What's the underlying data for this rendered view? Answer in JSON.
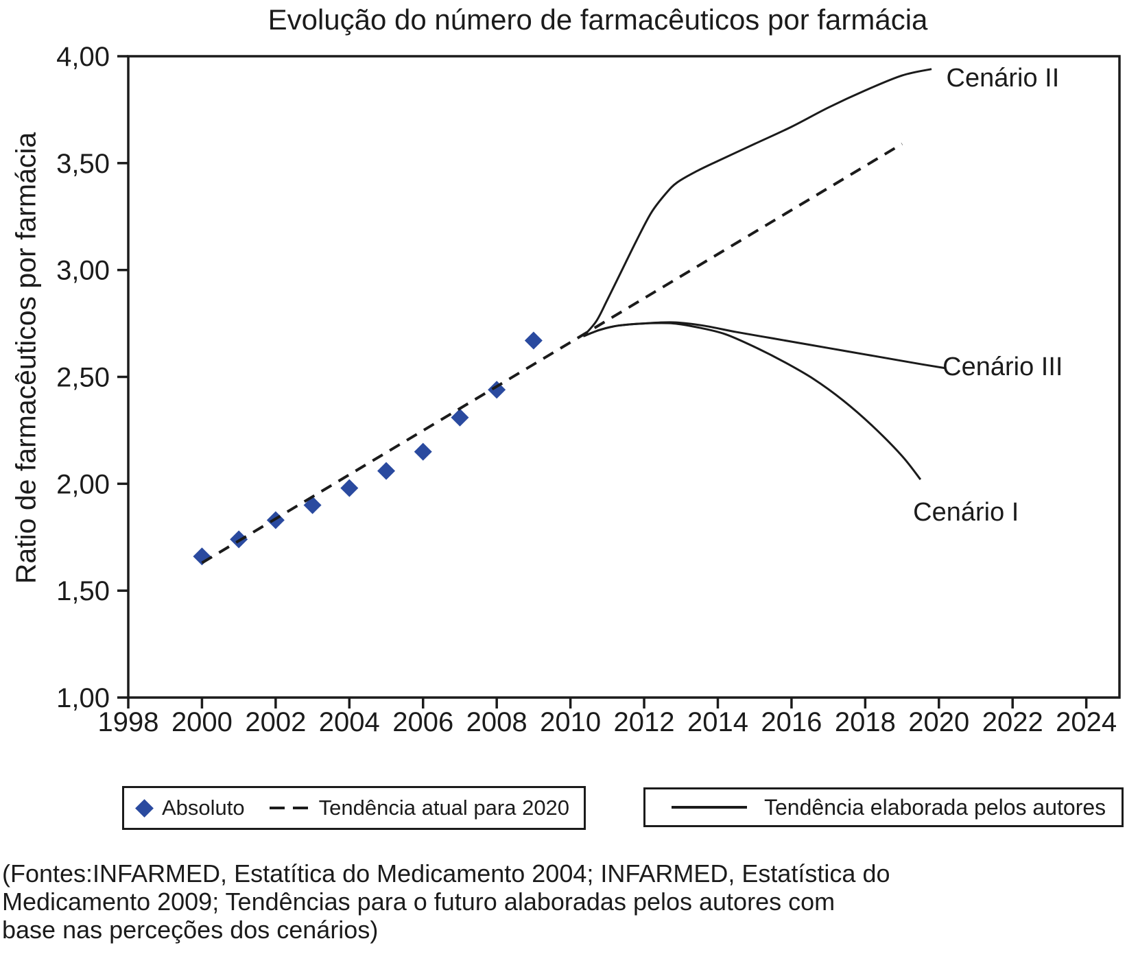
{
  "title": "Evolução do número de farmacêuticos por farmácia",
  "y_axis_label": "Ratio de farmacêuticos por farmácia",
  "legend1": {
    "absoluto": "Absoluto",
    "tendencia": "Tendência atual para 2020"
  },
  "legend2": {
    "label": "Tendência elaborada pelos autores"
  },
  "source": {
    "line1": "(Fontes:INFARMED, Estatítica do Medicamento 2004; INFARMED, Estatística do",
    "line2": "Medicamento 2009; Tendências para o futuro alaboradas pelos autores com",
    "line3": "base nas perceções dos cenários)"
  },
  "colors": {
    "marker_blue": "#2a4a9f",
    "ink": "#1b1b1b"
  },
  "chart_data": {
    "type": "line",
    "title": "Evolução do número de farmacêuticos por farmácia",
    "xlabel": "",
    "ylabel": "Ratio de farmacêuticos por farmácia",
    "xlim": [
      1998,
      2024.9
    ],
    "ylim": [
      1.0,
      4.0
    ],
    "grid": false,
    "x_ticks": [
      1998,
      2000,
      2002,
      2004,
      2006,
      2008,
      2010,
      2012,
      2014,
      2016,
      2018,
      2020,
      2022,
      2024
    ],
    "y_ticks": [
      4.0,
      3.5,
      3.0,
      2.5,
      2.0,
      1.5,
      1.0
    ],
    "y_tick_labels": [
      "4,00",
      "3,50",
      "3,00",
      "2,50",
      "2,00",
      "1,50",
      "1,00"
    ],
    "series": [
      {
        "name": "Absoluto",
        "kind": "scatter",
        "marker": "diamond",
        "color": "#2a4a9f",
        "x": [
          2000,
          2001,
          2002,
          2003,
          2004,
          2005,
          2006,
          2007,
          2008,
          2009
        ],
        "y": [
          1.66,
          1.74,
          1.83,
          1.9,
          1.98,
          2.06,
          2.15,
          2.31,
          2.44,
          2.67
        ]
      },
      {
        "name": "Tendência atual para 2020",
        "kind": "dashed",
        "color": "#1b1b1b",
        "points": [
          [
            2000,
            1.63
          ],
          [
            2019,
            3.59
          ]
        ]
      },
      {
        "name": "Cenário II",
        "kind": "solid",
        "color": "#1b1b1b",
        "points": [
          [
            2010.35,
            2.69
          ],
          [
            2010.7,
            2.76
          ],
          [
            2011.0,
            2.86
          ],
          [
            2011.4,
            3.0
          ],
          [
            2011.8,
            3.14
          ],
          [
            2012.2,
            3.27
          ],
          [
            2012.6,
            3.36
          ],
          [
            2012.9,
            3.41
          ],
          [
            2013.4,
            3.46
          ],
          [
            2014.0,
            3.51
          ],
          [
            2015.0,
            3.59
          ],
          [
            2016.0,
            3.67
          ],
          [
            2017.0,
            3.76
          ],
          [
            2018.0,
            3.84
          ],
          [
            2019.0,
            3.91
          ],
          [
            2019.8,
            3.94
          ]
        ]
      },
      {
        "name": "Cenário III",
        "kind": "solid",
        "color": "#1b1b1b",
        "points": [
          [
            2010.35,
            2.69
          ],
          [
            2010.8,
            2.72
          ],
          [
            2011.3,
            2.74
          ],
          [
            2012.0,
            2.75
          ],
          [
            2012.8,
            2.755
          ],
          [
            2013.6,
            2.74
          ],
          [
            2014.5,
            2.71
          ],
          [
            2015.5,
            2.68
          ],
          [
            2016.5,
            2.65
          ],
          [
            2017.5,
            2.62
          ],
          [
            2018.5,
            2.59
          ],
          [
            2019.5,
            2.56
          ],
          [
            2020.2,
            2.54
          ]
        ]
      },
      {
        "name": "Cenário I",
        "kind": "solid",
        "color": "#1b1b1b",
        "points": [
          [
            2010.35,
            2.69
          ],
          [
            2010.8,
            2.72
          ],
          [
            2011.3,
            2.74
          ],
          [
            2012.0,
            2.75
          ],
          [
            2012.8,
            2.75
          ],
          [
            2013.5,
            2.73
          ],
          [
            2014.2,
            2.7
          ],
          [
            2015.0,
            2.64
          ],
          [
            2015.8,
            2.57
          ],
          [
            2016.6,
            2.49
          ],
          [
            2017.4,
            2.39
          ],
          [
            2018.2,
            2.27
          ],
          [
            2019.0,
            2.13
          ],
          [
            2019.5,
            2.02
          ]
        ]
      }
    ],
    "annotations": [
      {
        "text": "Cenário II",
        "x": 2020.2,
        "y": 3.9
      },
      {
        "text": "Cenário III",
        "x": 2020.1,
        "y": 2.55
      },
      {
        "text": "Cenário I",
        "x": 2019.3,
        "y": 1.87
      }
    ],
    "legend_position": "bottom"
  }
}
